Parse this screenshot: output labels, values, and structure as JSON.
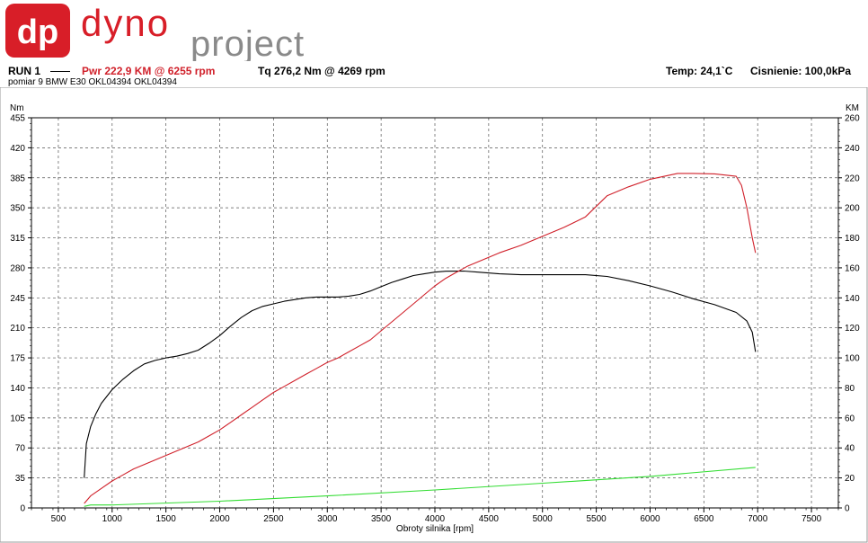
{
  "logo": {
    "badge_text": "dp",
    "brand_word1": "dyno",
    "brand_word2": "project",
    "brand_red": "#d81e28",
    "brand_gray": "#8a8a8a"
  },
  "header": {
    "run_label": "RUN 1",
    "pwr_text": "Pwr  222,9 KM @ 6255 rpm",
    "tq_text": "Tq 276,2 Nm @ 4269 rpm",
    "temp_text": "Temp: 24,1`C",
    "pressure_text": "Cisnienie: 100,0kPa",
    "subtitle": "pomiar 9 BMW E30 OKL04394 OKL04394"
  },
  "chart_data": {
    "type": "line",
    "xlabel": "Obroty silnika [rpm]",
    "ylabel_left": "Nm",
    "ylabel_right": "KM",
    "xlim": [
      250,
      7750
    ],
    "ylim_left": [
      0,
      455
    ],
    "ylim_right": [
      0,
      260
    ],
    "x_ticks": [
      500,
      1000,
      1500,
      2000,
      2500,
      3000,
      3500,
      4000,
      4500,
      5000,
      5500,
      6000,
      6500,
      7000,
      7500
    ],
    "y_ticks_left": [
      0,
      35,
      70,
      105,
      140,
      175,
      210,
      245,
      280,
      315,
      350,
      385,
      420,
      455
    ],
    "y_ticks_right": [
      0,
      20,
      40,
      60,
      80,
      100,
      120,
      140,
      160,
      180,
      200,
      220,
      240,
      260
    ],
    "grid": true,
    "series": [
      {
        "axis": "left",
        "color": "#000000",
        "x": [
          740,
          760,
          800,
          850,
          900,
          1000,
          1100,
          1200,
          1300,
          1400,
          1500,
          1600,
          1700,
          1800,
          1900,
          2000,
          2100,
          2200,
          2300,
          2400,
          2500,
          2600,
          2700,
          2800,
          2900,
          3000,
          3100,
          3200,
          3300,
          3400,
          3500,
          3600,
          3700,
          3800,
          3900,
          4000,
          4100,
          4269,
          4400,
          4600,
          4800,
          5000,
          5200,
          5400,
          5600,
          5800,
          6000,
          6200,
          6400,
          6600,
          6800,
          6900,
          6950,
          6980
        ],
        "y": [
          35,
          75,
          95,
          110,
          122,
          138,
          150,
          160,
          168,
          172,
          175,
          177,
          180,
          184,
          192,
          201,
          212,
          222,
          230,
          235,
          238,
          241,
          243,
          245,
          246,
          246,
          246,
          247,
          249,
          253,
          258,
          263,
          267,
          271,
          273,
          275,
          276,
          276.2,
          275,
          273,
          272,
          272,
          272,
          272,
          270,
          265,
          259,
          252,
          244,
          237,
          228,
          218,
          205,
          182
        ]
      },
      {
        "axis": "right",
        "color": "#d0202a",
        "x": [
          740,
          800,
          900,
          1000,
          1100,
          1200,
          1300,
          1400,
          1500,
          1600,
          1700,
          1800,
          1900,
          2000,
          2100,
          2200,
          2300,
          2400,
          2500,
          2600,
          2700,
          2800,
          2900,
          3000,
          3100,
          3200,
          3300,
          3400,
          3500,
          3600,
          3700,
          3800,
          3900,
          4000,
          4100,
          4200,
          4300,
          4400,
          4500,
          4600,
          4800,
          5000,
          5200,
          5400,
          5600,
          5800,
          6000,
          6255,
          6400,
          6600,
          6800,
          6850,
          6900,
          6950,
          6980
        ],
        "y": [
          3,
          8,
          13,
          18,
          22,
          26,
          29,
          32,
          35,
          38,
          41,
          44,
          48,
          52,
          57,
          62,
          67,
          72,
          77,
          81,
          85,
          89,
          93,
          97,
          100,
          104,
          108,
          112,
          118,
          124,
          130,
          136,
          142,
          148,
          153,
          157,
          161,
          164,
          167,
          170,
          175,
          181,
          187,
          194,
          208,
          214,
          219,
          222.9,
          222.9,
          222.6,
          221,
          215,
          200,
          180,
          170
        ]
      },
      {
        "axis": "right",
        "color": "#33dd33",
        "x": [
          740,
          800,
          1000,
          2000,
          3000,
          4000,
          5000,
          6000,
          6980
        ],
        "y": [
          1,
          2,
          2,
          4.5,
          8,
          12,
          16.5,
          21,
          27
        ]
      }
    ]
  }
}
